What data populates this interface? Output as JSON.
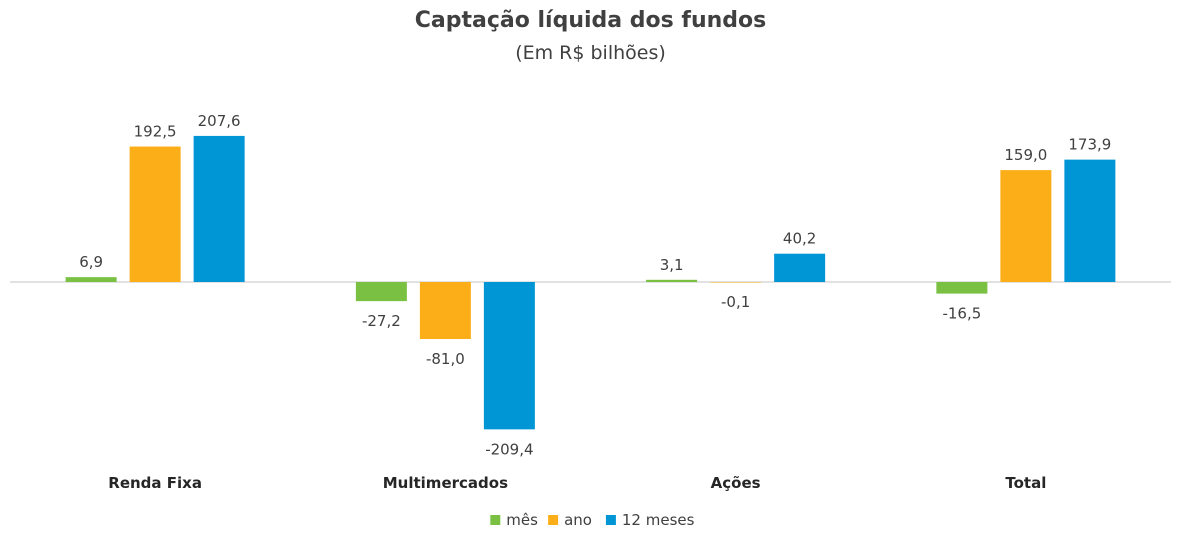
{
  "chart_data": {
    "type": "bar",
    "title": "Captação líquida dos fundos",
    "subtitle": "(Em R$ bilhões)",
    "categories": [
      "Renda Fixa",
      "Multimercados",
      "Ações",
      "Total"
    ],
    "series": [
      {
        "name": "mês",
        "color": "#7AC143",
        "values": [
          6.9,
          -27.2,
          3.1,
          -16.5
        ],
        "labels": [
          "6,9",
          "-27,2",
          "3,1",
          "-16,5"
        ]
      },
      {
        "name": "ano",
        "color": "#FBAE17",
        "values": [
          192.5,
          -81.0,
          -0.1,
          159.0
        ],
        "labels": [
          "192,5",
          "-81,0",
          "-0,1",
          "159,0"
        ]
      },
      {
        "name": "12 meses",
        "color": "#0096D6",
        "values": [
          207.6,
          -209.4,
          40.2,
          173.9
        ],
        "labels": [
          "207,6",
          "-209,4",
          "40,2",
          "173,9"
        ]
      }
    ],
    "ylim": [
      -209.4,
      207.6
    ],
    "grid": false,
    "legend": "bottom"
  }
}
